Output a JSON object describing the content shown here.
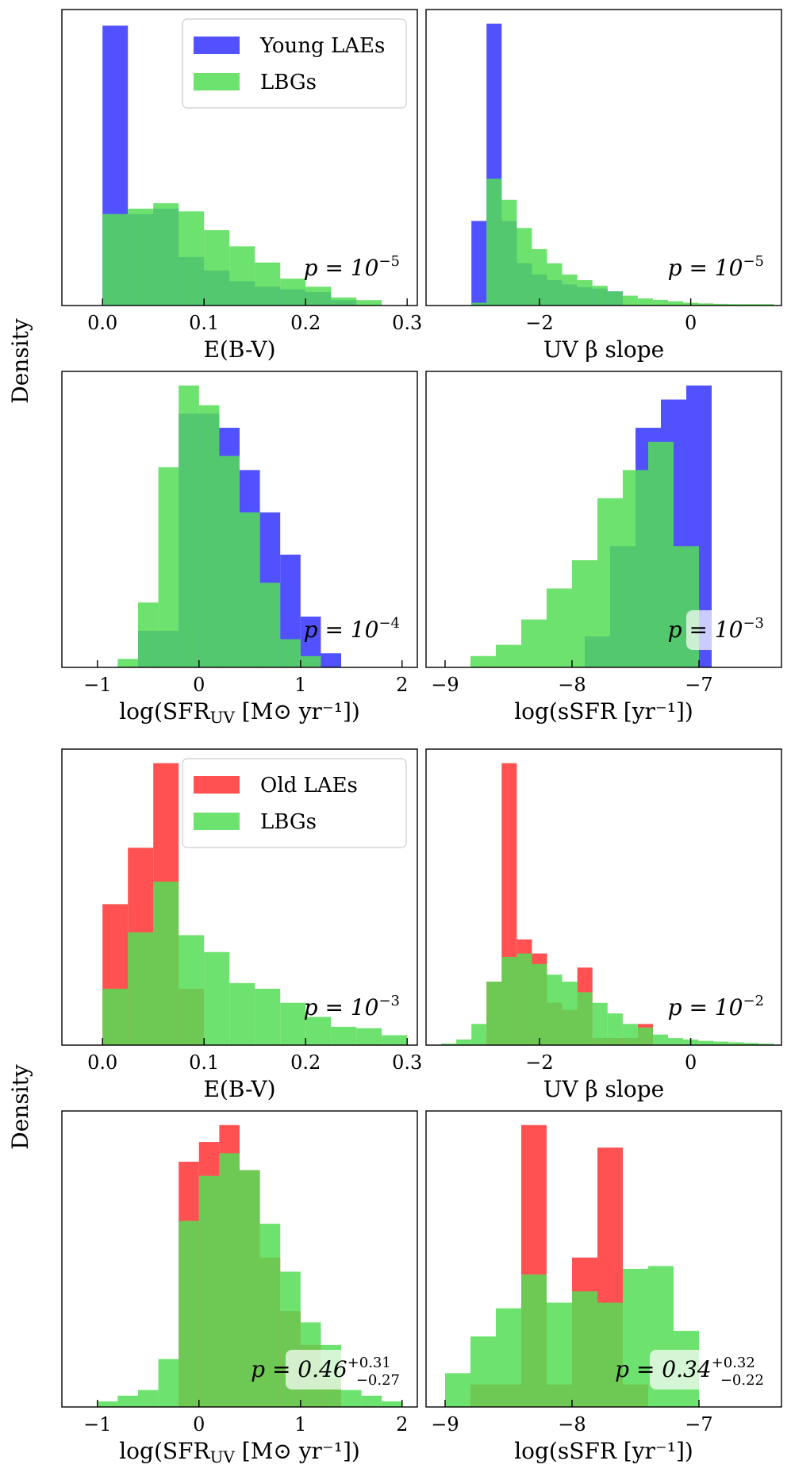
{
  "figure": {
    "ylabel_top": "Density",
    "ylabel_bottom": "Density"
  },
  "colors": {
    "young": "#3333ff",
    "old": "#ff3333",
    "lbg": "#55dd55"
  },
  "chart_data": [
    {
      "id": "p1",
      "type": "histogram",
      "xlabel": "E(B-V)",
      "xlim": [
        -0.04,
        0.31
      ],
      "xticks": [
        0.0,
        0.1,
        0.2,
        0.3
      ],
      "tick_labels": [
        "0.0",
        "0.1",
        "0.2",
        "0.3"
      ],
      "ymax": 5.5,
      "annotation": {
        "base": "p = 10",
        "sup": "−5",
        "sub": "",
        "box": false
      },
      "legend": [
        {
          "label": "Young LAEs",
          "color": "#3333ff"
        },
        {
          "label": "LBGs",
          "color": "#55dd55"
        }
      ],
      "series": [
        {
          "name": "Young LAEs",
          "color": "#3333ff",
          "edges": [
            0.0,
            0.025,
            0.05,
            0.075,
            0.1,
            0.125,
            0.15,
            0.175,
            0.2,
            0.225,
            0.25
          ],
          "values": [
            5.2,
            1.7,
            1.8,
            0.9,
            0.65,
            0.45,
            0.35,
            0.3,
            0.25,
            0.1
          ]
        },
        {
          "name": "LBGs",
          "color": "#55dd55",
          "edges": [
            0.0,
            0.025,
            0.05,
            0.075,
            0.1,
            0.125,
            0.15,
            0.175,
            0.2,
            0.225,
            0.25,
            0.275
          ],
          "values": [
            1.7,
            1.8,
            1.9,
            1.75,
            1.4,
            1.1,
            0.8,
            0.5,
            0.35,
            0.15,
            0.1,
            0.05
          ]
        }
      ]
    },
    {
      "id": "p2",
      "type": "histogram",
      "xlabel": "UV β slope",
      "xlim": [
        -3.5,
        1.2
      ],
      "xticks": [
        -2,
        0
      ],
      "tick_labels": [
        "−2",
        "0"
      ],
      "ymax": 2.1,
      "annotation": {
        "base": "p = 10",
        "sup": "−5",
        "sub": "",
        "box": false
      },
      "series": [
        {
          "name": "Young LAEs",
          "color": "#3333ff",
          "edges": [
            -2.9,
            -2.7,
            -2.5,
            -2.3,
            -2.1,
            -1.9,
            -1.7,
            -1.5,
            -1.3,
            -1.1,
            -0.9
          ],
          "values": [
            0.6,
            2.0,
            0.6,
            0.3,
            0.22,
            0.18,
            0.15,
            0.13,
            0.12,
            0.1
          ]
        },
        {
          "name": "LBGs",
          "color": "#55dd55",
          "edges": [
            -2.9,
            -2.7,
            -2.5,
            -2.3,
            -2.1,
            -1.9,
            -1.7,
            -1.5,
            -1.3,
            -1.1,
            -0.9,
            -0.7,
            -0.5,
            -0.3,
            -0.1,
            0.1,
            0.3,
            0.5,
            0.7,
            0.9,
            1.1
          ],
          "values": [
            0.02,
            0.9,
            0.75,
            0.55,
            0.4,
            0.3,
            0.22,
            0.18,
            0.14,
            0.1,
            0.07,
            0.05,
            0.04,
            0.03,
            0.02,
            0.015,
            0.012,
            0.01,
            0.01,
            0.01
          ]
        }
      ]
    },
    {
      "id": "p3",
      "type": "histogram",
      "xlabel": "log(SFR_UV [M⊙ yr⁻¹])",
      "xlim": [
        -1.35,
        2.15
      ],
      "xticks": [
        -1,
        0,
        1,
        2
      ],
      "tick_labels": [
        "−1",
        "0",
        "1",
        "2"
      ],
      "ymax": 1.05,
      "annotation": {
        "base": "p = 10",
        "sup": "−4",
        "sub": "",
        "box": true
      },
      "series": [
        {
          "name": "Young LAEs",
          "color": "#3333ff",
          "edges": [
            -0.6,
            -0.4,
            -0.2,
            0.0,
            0.2,
            0.4,
            0.6,
            0.8,
            1.0,
            1.2,
            1.4
          ],
          "values": [
            0.13,
            0.13,
            0.9,
            0.9,
            0.85,
            0.7,
            0.55,
            0.4,
            0.18,
            0.05
          ]
        },
        {
          "name": "LBGs",
          "color": "#55dd55",
          "edges": [
            -0.8,
            -0.6,
            -0.4,
            -0.2,
            0.0,
            0.2,
            0.4,
            0.6,
            0.8,
            1.0,
            1.2
          ],
          "values": [
            0.03,
            0.23,
            0.71,
            1.0,
            0.93,
            0.75,
            0.55,
            0.3,
            0.1,
            0.04
          ]
        }
      ]
    },
    {
      "id": "p4",
      "type": "histogram",
      "xlabel": "log(sSFR [yr⁻¹])",
      "xlim": [
        -9.15,
        -6.35
      ],
      "xticks": [
        -9,
        -8,
        -7
      ],
      "tick_labels": [
        "−9",
        "−8",
        "−7"
      ],
      "ymax": 1.05,
      "annotation": {
        "base": "p = 10",
        "sup": "−3",
        "sub": "",
        "box": true
      },
      "series": [
        {
          "name": "Young LAEs",
          "color": "#3333ff",
          "edges": [
            -7.9,
            -7.7,
            -7.5,
            -7.3,
            -7.1,
            -6.9
          ],
          "values": [
            0.11,
            0.43,
            0.85,
            0.95,
            1.0
          ]
        },
        {
          "name": "LBGs",
          "color": "#55dd55",
          "edges": [
            -8.8,
            -8.6,
            -8.4,
            -8.2,
            -8.0,
            -7.8,
            -7.6,
            -7.4,
            -7.2,
            -7.0
          ],
          "values": [
            0.04,
            0.08,
            0.17,
            0.28,
            0.38,
            0.6,
            0.7,
            0.8,
            0.43
          ]
        }
      ]
    },
    {
      "id": "p5",
      "type": "histogram",
      "xlabel": "E(B-V)",
      "xlim": [
        -0.04,
        0.31
      ],
      "xticks": [
        0.0,
        0.1,
        0.2,
        0.3
      ],
      "tick_labels": [
        "0.0",
        "0.1",
        "0.2",
        "0.3"
      ],
      "ymax": 10.5,
      "annotation": {
        "base": "p = 10",
        "sup": "−3",
        "sub": "",
        "box": false
      },
      "legend": [
        {
          "label": "Old LAEs",
          "color": "#ff3333"
        },
        {
          "label": "LBGs",
          "color": "#55dd55"
        }
      ],
      "series": [
        {
          "name": "Old LAEs",
          "color": "#ff3333",
          "edges": [
            0.0,
            0.025,
            0.05,
            0.075,
            0.1
          ],
          "values": [
            5.0,
            7.0,
            10.0,
            2.0
          ]
        },
        {
          "name": "LBGs",
          "color": "#55dd55",
          "edges": [
            0.0,
            0.025,
            0.05,
            0.075,
            0.1,
            0.125,
            0.15,
            0.175,
            0.2,
            0.225,
            0.25,
            0.275,
            0.3
          ],
          "values": [
            2.0,
            4.0,
            5.8,
            3.9,
            3.3,
            2.2,
            2.0,
            1.5,
            1.0,
            0.65,
            0.6,
            0.35
          ]
        }
      ]
    },
    {
      "id": "p6",
      "type": "histogram",
      "xlabel": "UV β slope",
      "xlim": [
        -3.5,
        1.2
      ],
      "xticks": [
        -2,
        0
      ],
      "tick_labels": [
        "−2",
        "0"
      ],
      "ymax": 4.2,
      "annotation": {
        "base": "p = 10",
        "sup": "−2",
        "sub": "",
        "box": false
      },
      "series": [
        {
          "name": "Old LAEs",
          "color": "#ff3333",
          "edges": [
            -2.7,
            -2.5,
            -2.3,
            -2.1,
            -1.9,
            -1.7,
            -1.5,
            -1.3,
            -0.7,
            -0.5
          ],
          "values": [
            0.9,
            4.0,
            1.5,
            1.3,
            0.6,
            0.5,
            1.1,
            0.1,
            0.3
          ]
        },
        {
          "name": "LBGs",
          "color": "#55dd55",
          "edges": [
            -3.3,
            -3.1,
            -2.9,
            -2.7,
            -2.5,
            -2.3,
            -2.1,
            -1.9,
            -1.7,
            -1.5,
            -1.3,
            -1.1,
            -0.9,
            -0.7,
            -0.5,
            -0.3,
            -0.1,
            0.1,
            0.3,
            0.5,
            0.7,
            0.9,
            1.1
          ],
          "values": [
            0.02,
            0.08,
            0.3,
            0.9,
            1.25,
            1.3,
            1.15,
            1.0,
            0.9,
            0.75,
            0.6,
            0.45,
            0.3,
            0.25,
            0.15,
            0.1,
            0.08,
            0.06,
            0.05,
            0.04,
            0.03,
            0.02
          ]
        }
      ]
    },
    {
      "id": "p7",
      "type": "histogram",
      "xlabel": "log(SFR_UV [M⊙ yr⁻¹])",
      "xlim": [
        -1.35,
        2.15
      ],
      "xticks": [
        -1,
        0,
        1,
        2
      ],
      "tick_labels": [
        "−1",
        "0",
        "1",
        "2"
      ],
      "ymax": 1.05,
      "annotation": {
        "base": "p = 0.46",
        "sup": "+0.31",
        "sub": "−0.27",
        "box": true
      },
      "series": [
        {
          "name": "Old LAEs",
          "color": "#ff3333",
          "edges": [
            -0.2,
            0.0,
            0.2,
            0.4,
            0.6,
            0.8,
            1.0,
            1.2,
            1.4
          ],
          "values": [
            0.87,
            0.94,
            1.0,
            0.84,
            0.53,
            0.34,
            0.22,
            0.1
          ]
        },
        {
          "name": "LBGs",
          "color": "#55dd55",
          "edges": [
            -1.0,
            -0.8,
            -0.6,
            -0.4,
            -0.2,
            0.0,
            0.2,
            0.4,
            0.6,
            0.8,
            1.0,
            1.2,
            1.4,
            1.6,
            1.8,
            2.0
          ],
          "values": [
            0.02,
            0.04,
            0.06,
            0.17,
            0.66,
            0.82,
            0.9,
            0.84,
            0.65,
            0.48,
            0.3,
            0.22,
            0.06,
            0.04,
            0.02
          ]
        }
      ]
    },
    {
      "id": "p8",
      "type": "histogram",
      "xlabel": "log(sSFR [yr⁻¹])",
      "xlim": [
        -9.15,
        -6.35
      ],
      "xticks": [
        -9,
        -8,
        -7
      ],
      "tick_labels": [
        "−9",
        "−8",
        "−7"
      ],
      "ymax": 1.05,
      "annotation": {
        "base": "p = 0.34",
        "sup": "+0.32",
        "sub": "−0.22",
        "box": true
      },
      "series": [
        {
          "name": "Old LAEs",
          "color": "#ff3333",
          "edges": [
            -8.8,
            -8.6,
            -8.4,
            -8.2,
            -8.0,
            -7.8,
            -7.6,
            -7.4
          ],
          "values": [
            0.08,
            0.08,
            1.0,
            0.08,
            0.53,
            0.92,
            0.08
          ]
        },
        {
          "name": "LBGs",
          "color": "#55dd55",
          "edges": [
            -9.0,
            -8.8,
            -8.6,
            -8.4,
            -8.2,
            -8.0,
            -7.8,
            -7.6,
            -7.4,
            -7.2,
            -7.0
          ],
          "values": [
            0.12,
            0.25,
            0.35,
            0.47,
            0.37,
            0.41,
            0.37,
            0.49,
            0.5,
            0.27,
            0.08
          ]
        }
      ]
    }
  ]
}
